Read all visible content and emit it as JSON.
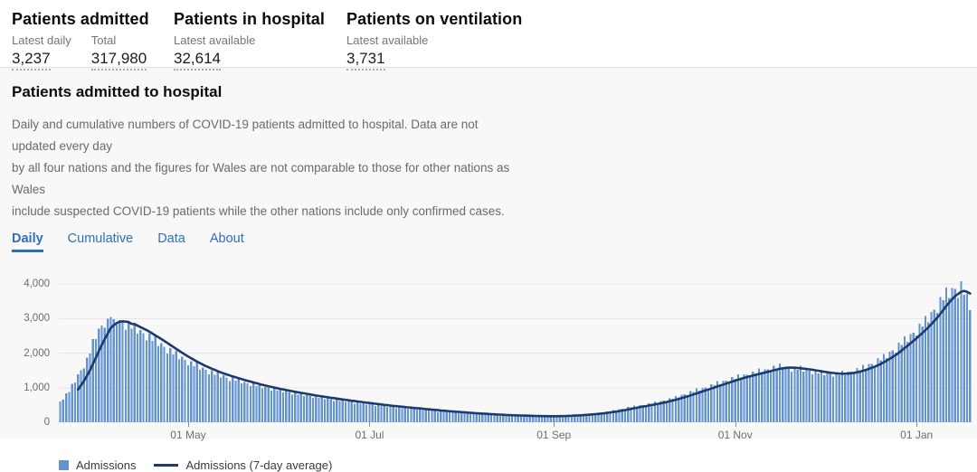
{
  "stats": [
    {
      "title": "Patients admitted",
      "metrics": [
        {
          "label": "Latest daily",
          "value": "3,237"
        },
        {
          "label": "Total",
          "value": "317,980"
        }
      ]
    },
    {
      "title": "Patients in hospital",
      "metrics": [
        {
          "label": "Latest available",
          "value": "32,614"
        }
      ]
    },
    {
      "title": "Patients on ventilation",
      "metrics": [
        {
          "label": "Latest available",
          "value": "3,731"
        }
      ]
    }
  ],
  "section": {
    "heading": "Patients admitted to hospital",
    "description_lines": [
      "Daily and cumulative numbers of COVID-19 patients admitted to hospital. Data are not updated every day",
      "by all four nations and the figures for Wales are not comparable to those for other nations as Wales",
      "include suspected COVID-19 patients while the other nations include only confirmed cases."
    ],
    "tabs": [
      {
        "label": "Daily"
      },
      {
        "label": "Cumulative"
      },
      {
        "label": "Data"
      },
      {
        "label": "About"
      }
    ],
    "active_tab": "Daily"
  },
  "chart_data": {
    "type": "bar",
    "title": "Daily COVID-19 patients admitted to hospital",
    "legend": {
      "bar": "Admissions",
      "line": "Admissions (7-day average)"
    },
    "avg_window": 7,
    "ylim": [
      0,
      4300
    ],
    "grid": "horizontal",
    "y_ticks": [
      {
        "label": "0",
        "value": 0
      },
      {
        "label": "1,000",
        "value": 1000
      },
      {
        "label": "2,000",
        "value": 2000
      },
      {
        "label": "3,000",
        "value": 3000
      },
      {
        "label": "4,000",
        "value": 4000
      }
    ],
    "x_ticks": [
      {
        "label": "01 May",
        "day_index": 43
      },
      {
        "label": "01 Jul",
        "day_index": 104
      },
      {
        "label": "01 Sep",
        "day_index": 166
      },
      {
        "label": "01 Nov",
        "day_index": 227
      },
      {
        "label": "01 Jan",
        "day_index": 288
      }
    ],
    "values": [
      600,
      658,
      832,
      882,
      1110,
      1150,
      1380,
      1500,
      1550,
      1870,
      1990,
      2410,
      2400,
      2700,
      2800,
      2730,
      3000,
      3040,
      2980,
      2840,
      2960,
      2870,
      2670,
      2910,
      2700,
      2880,
      2560,
      2670,
      2570,
      2370,
      2560,
      2350,
      2490,
      2210,
      2290,
      2180,
      1990,
      2140,
      1960,
      2070,
      1820,
      1890,
      1800,
      1650,
      1770,
      1620,
      1720,
      1520,
      1580,
      1510,
      1390,
      1500,
      1370,
      1460,
      1300,
      1360,
      1300,
      1190,
      1300,
      1200,
      1270,
      1130,
      1170,
      1130,
      1040,
      1120,
      1040,
      1100,
      980,
      1020,
      990,
      910,
      990,
      910,
      960,
      860,
      900,
      870,
      800,
      870,
      800,
      850,
      760,
      790,
      760,
      700,
      760,
      710,
      750,
      670,
      700,
      670,
      620,
      670,
      620,
      660,
      590,
      610,
      590,
      540,
      600,
      540,
      580,
      510,
      540,
      520,
      470,
      510,
      470,
      500,
      450,
      470,
      450,
      410,
      450,
      410,
      440,
      390,
      410,
      390,
      360,
      395,
      355,
      375,
      335,
      350,
      335,
      305,
      330,
      305,
      325,
      290,
      300,
      287,
      263,
      284,
      260,
      278,
      246,
      255,
      245,
      226,
      243,
      223,
      240,
      213,
      221,
      213,
      196,
      212,
      196,
      210,
      187,
      196,
      190,
      176,
      191,
      178,
      191,
      172,
      181,
      176,
      164,
      180,
      169,
      184,
      171,
      185,
      185,
      177,
      200,
      192,
      212,
      199,
      217,
      220,
      213,
      242,
      235,
      263,
      250,
      277,
      284,
      278,
      320,
      314,
      355,
      338,
      377,
      387,
      381,
      439,
      431,
      482,
      451,
      495,
      500,
      484,
      551,
      534,
      599,
      562,
      619,
      628,
      610,
      697,
      676,
      763,
      718,
      793,
      805,
      783,
      896,
      872,
      975,
      910,
      997,
      1005,
      971,
      1100,
      1070,
      1190,
      1100,
      1200,
      1205,
      1160,
      1310,
      1260,
      1390,
      1280,
      1380,
      1375,
      1310,
      1470,
      1410,
      1550,
      1420,
      1530,
      1525,
      1450,
      1630,
      1560,
      1700,
      1525,
      1610,
      1570,
      1465,
      1610,
      1515,
      1630,
      1460,
      1535,
      1490,
      1385,
      1515,
      1410,
      1510,
      1365,
      1445,
      1405,
      1315,
      1450,
      1360,
      1485,
      1365,
      1470,
      1465,
      1400,
      1570,
      1500,
      1655,
      1540,
      1680,
      1690,
      1630,
      1850,
      1785,
      1980,
      1860,
      2045,
      2075,
      2015,
      2300,
      2235,
      2490,
      2330,
      2555,
      2585,
      2505,
      2850,
      2765,
      3075,
      2895,
      3195,
      3250,
      3165,
      3620,
      3530,
      3900,
      3590,
      3880,
      3850,
      3600,
      4080,
      3690,
      3720,
      3240
    ],
    "colors": {
      "bar": "#6394ce",
      "line": "#1d3a6e",
      "grid": "#e6e6e6",
      "zero_line": "#d8d8d8",
      "accent_blue": "#2e6fb7"
    }
  }
}
